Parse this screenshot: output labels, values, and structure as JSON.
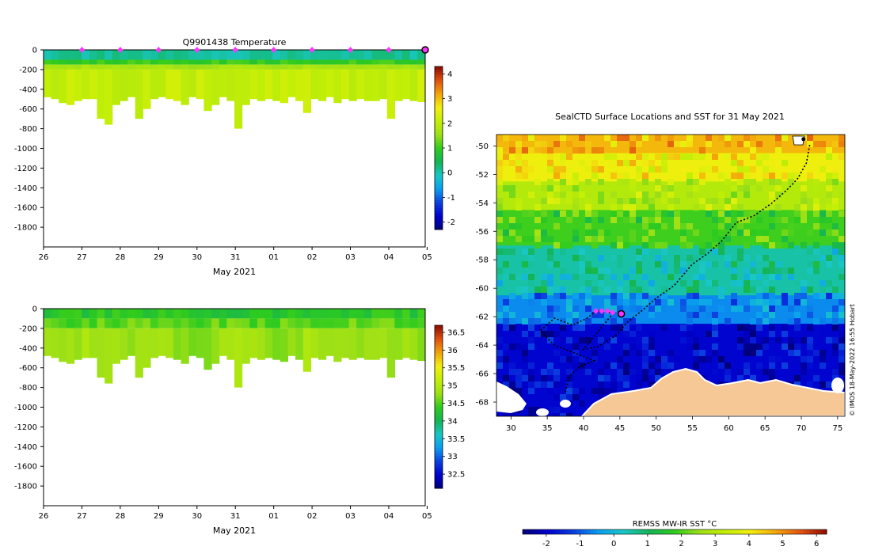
{
  "chart_data": [
    {
      "type": "heatmap",
      "id": "temperature-section",
      "title": "Q9901438  Temperature",
      "xlabel": "May 2021",
      "ylabel": "",
      "x_tick_labels": [
        "26",
        "27",
        "28",
        "29",
        "30",
        "31",
        "01",
        "02",
        "03",
        "04",
        "05"
      ],
      "y_ticks": [
        0,
        -200,
        -400,
        -600,
        -800,
        -1000,
        -1200,
        -1400,
        -1600,
        -1800
      ],
      "ylim": [
        -2000,
        0
      ],
      "xlim_days": [
        0,
        9.95
      ],
      "profile_marker_days": [
        1,
        2,
        3,
        4,
        5,
        6,
        7,
        8,
        9
      ],
      "last_profile_day": 9.95,
      "profile_max_depth": [
        -480,
        -500,
        -540,
        -560,
        -520,
        -500,
        -500,
        -700,
        -760,
        -560,
        -520,
        -480,
        -700,
        -600,
        -500,
        -480,
        -500,
        -520,
        -560,
        -480,
        -500,
        -620,
        -560,
        -480,
        -520,
        -800,
        -560,
        -500,
        -520,
        -500,
        -520,
        -540,
        -480,
        -520,
        -640,
        -500,
        -520,
        -480,
        -540,
        -500,
        -520,
        -500,
        -520,
        -520,
        -500,
        -700,
        -520,
        -500,
        -520,
        -530
      ],
      "colorbar": {
        "ticks": [
          -2,
          -1,
          0,
          1,
          2,
          3,
          4
        ],
        "range": [
          -2.3,
          4.3
        ],
        "colors": [
          "#00007a",
          "#0000cd",
          "#0b3fe0",
          "#0a9ef0",
          "#19c7c5",
          "#14b454",
          "#2fcb1e",
          "#9ee016",
          "#c3ef06",
          "#f2ef0f",
          "#f3a40a",
          "#e05010",
          "#8c0b00"
        ]
      },
      "layers": [
        {
          "depth": [
            0,
            -100
          ],
          "value": 0.1
        },
        {
          "depth": [
            -100,
            -150
          ],
          "value": 1.0
        },
        {
          "depth": [
            -150,
            -200
          ],
          "value": 1.7
        },
        {
          "depth": [
            -200,
            -2000
          ],
          "value": 2.1
        }
      ]
    },
    {
      "type": "heatmap",
      "id": "salinity-section",
      "title": "",
      "xlabel": "May 2021",
      "ylabel": "",
      "x_tick_labels": [
        "26",
        "27",
        "28",
        "29",
        "30",
        "31",
        "01",
        "02",
        "03",
        "04",
        "05"
      ],
      "y_ticks": [
        0,
        -200,
        -400,
        -600,
        -800,
        -1000,
        -1200,
        -1400,
        -1600,
        -1800
      ],
      "ylim": [
        -2000,
        0
      ],
      "xlim_days": [
        0,
        9.95
      ],
      "profile_max_depth": [
        -480,
        -500,
        -540,
        -560,
        -520,
        -500,
        -500,
        -700,
        -760,
        -560,
        -520,
        -480,
        -700,
        -600,
        -500,
        -480,
        -500,
        -520,
        -560,
        -480,
        -500,
        -620,
        -560,
        -480,
        -520,
        -800,
        -560,
        -500,
        -520,
        -500,
        -520,
        -540,
        -480,
        -520,
        -640,
        -500,
        -520,
        -480,
        -540,
        -500,
        -520,
        -500,
        -520,
        -520,
        -500,
        -700,
        -520,
        -500,
        -520,
        -530
      ],
      "colorbar": {
        "ticks": [
          32.5,
          33,
          33.5,
          34,
          34.5,
          35,
          35.5,
          36,
          36.5
        ],
        "range": [
          32.1,
          36.7
        ],
        "colors": [
          "#00007a",
          "#0000cd",
          "#0b3fe0",
          "#0a9ef0",
          "#19c7c5",
          "#14b454",
          "#2fcb1e",
          "#9ee016",
          "#c3ef06",
          "#f2ef0f",
          "#f3a40a",
          "#e05010",
          "#8c0b00"
        ]
      },
      "layers": [
        {
          "depth": [
            0,
            -100
          ],
          "value": 34.3
        },
        {
          "depth": [
            -100,
            -200
          ],
          "value": 34.55
        },
        {
          "depth": [
            -200,
            -2000
          ],
          "value": 34.8
        }
      ]
    },
    {
      "type": "heatmap",
      "id": "sst-map",
      "title": "SealCTD Surface Locations and SST for 31 May 2021",
      "xlabel": "",
      "ylabel": "",
      "x_ticks": [
        30,
        35,
        40,
        45,
        50,
        55,
        60,
        65,
        70,
        75
      ],
      "y_ticks": [
        -50,
        -52,
        -54,
        -56,
        -58,
        -60,
        -62,
        -64,
        -66,
        -68
      ],
      "xlim": [
        28,
        76
      ],
      "ylim": [
        -69,
        -49.2
      ],
      "colorbar": {
        "label": "REMSS MW-IR SST °C",
        "ticks": [
          -2,
          -1,
          0,
          1,
          2,
          3,
          4,
          5,
          6
        ],
        "range": [
          -2.7,
          6.3
        ],
        "colors": [
          "#00007a",
          "#0000cd",
          "#0b3fe0",
          "#0a9ef0",
          "#19c7c5",
          "#14b454",
          "#2fcb1e",
          "#9ee016",
          "#c3ef06",
          "#f2ef0f",
          "#f3a40a",
          "#e05010",
          "#8c0b00"
        ]
      },
      "sst_bands": [
        {
          "lat": [
            -49.2,
            -50.5
          ],
          "value": 4.6
        },
        {
          "lat": [
            -50.5,
            -52.5
          ],
          "value": 4.0
        },
        {
          "lat": [
            -52.5,
            -54.5
          ],
          "value": 3.0
        },
        {
          "lat": [
            -54.5,
            -57
          ],
          "value": 1.9
        },
        {
          "lat": [
            -57,
            -60.5
          ],
          "value": 0.5
        },
        {
          "lat": [
            -60.5,
            -62.5
          ],
          "value": -0.6
        },
        {
          "lat": [
            -62.5,
            -69
          ],
          "value": -1.9
        }
      ],
      "track": [
        [
          37.5,
          -67.3
        ],
        [
          38,
          -66.2
        ],
        [
          39.5,
          -65.5
        ],
        [
          41.5,
          -65.1
        ],
        [
          38.5,
          -64.5
        ],
        [
          36,
          -64
        ],
        [
          34,
          -63
        ],
        [
          36,
          -62.1
        ],
        [
          38.5,
          -62.6
        ],
        [
          40.5,
          -62.1
        ],
        [
          41.7,
          -61.6
        ],
        [
          43,
          -61.6
        ],
        [
          44,
          -61.8
        ],
        [
          40,
          -64.3
        ],
        [
          42,
          -64.1
        ],
        [
          44.5,
          -63.3
        ],
        [
          46,
          -62.4
        ],
        [
          48,
          -61.6
        ],
        [
          50,
          -60.7
        ],
        [
          52.5,
          -59.8
        ],
        [
          55,
          -58.3
        ],
        [
          57,
          -57.6
        ],
        [
          59,
          -56.7
        ],
        [
          61,
          -55.4
        ],
        [
          63.5,
          -54.9
        ],
        [
          66,
          -54
        ],
        [
          68,
          -53.1
        ],
        [
          69.5,
          -52.3
        ],
        [
          70.7,
          -51.2
        ],
        [
          71.2,
          -49.8
        ]
      ],
      "recent_positions": [
        [
          41.7,
          -61.6
        ],
        [
          42.5,
          -61.6
        ],
        [
          43.3,
          -61.6
        ],
        [
          44,
          -61.7
        ]
      ],
      "current_position": [
        45.2,
        -61.8
      ],
      "start_position": [
        70.3,
        -49.3
      ],
      "credit": "© IMOS 18-May-2022 16:55 Hobart"
    }
  ]
}
